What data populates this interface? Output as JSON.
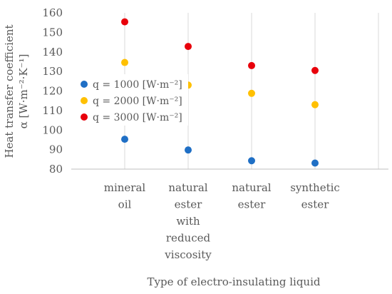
{
  "chart_data": {
    "type": "scatter",
    "title": "",
    "xlabel": "Type of electro-insulating liquid",
    "ylabel_lines": [
      "Heat transfer coefficient",
      "α [W·m⁻²·K⁻¹]"
    ],
    "ylim": [
      80,
      160
    ],
    "yticks": [
      80,
      90,
      100,
      110,
      120,
      130,
      140,
      150,
      160
    ],
    "grid": "vertical",
    "legend_position": "left",
    "categories": [
      [
        "mineral",
        "oil"
      ],
      [
        "natural",
        "ester",
        "with",
        "reduced",
        "viscosity"
      ],
      [
        "natural",
        "ester"
      ],
      [
        "synthetic",
        "ester"
      ]
    ],
    "series": [
      {
        "name": "q = 1000 [W·m⁻²]",
        "color": "#1f6fc5",
        "values": [
          95.3,
          89.8,
          84.3,
          83.1
        ]
      },
      {
        "name": "q = 2000 [W·m⁻²]",
        "color": "#ffc000",
        "values": [
          134.6,
          123.0,
          118.8,
          113.0
        ]
      },
      {
        "name": "q = 3000 [W·m⁻²]",
        "color": "#e8000b",
        "values": [
          155.4,
          142.8,
          133.0,
          130.5
        ]
      }
    ]
  }
}
